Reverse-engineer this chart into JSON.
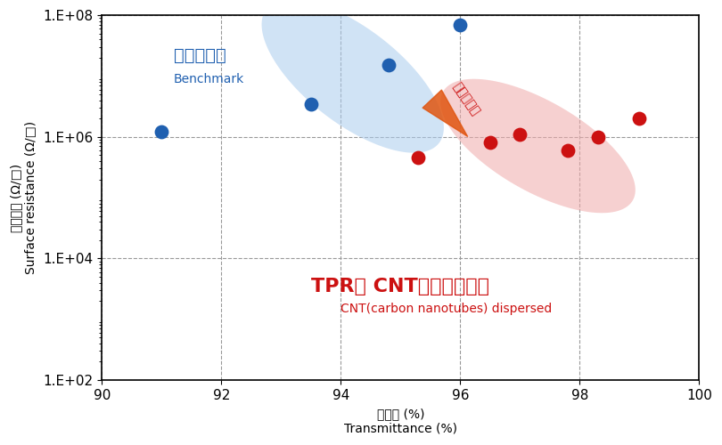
{
  "blue_points_x": [
    91.0,
    93.5,
    94.8,
    96.0
  ],
  "blue_points_y": [
    1200000.0,
    3500000.0,
    15000000.0,
    70000000.0
  ],
  "red_points_x": [
    95.3,
    96.5,
    97.0,
    97.8,
    98.3,
    99.0
  ],
  "red_points_y": [
    450000.0,
    800000.0,
    1100000.0,
    600000.0,
    1000000.0,
    2000000.0
  ],
  "blue_color": "#2060b0",
  "red_color": "#cc1111",
  "blue_ellipse_color": "#aaccee",
  "red_ellipse_color": "#f0aaaa",
  "bg_color": "#ffffff",
  "xlim": [
    90,
    100
  ],
  "ylim_log_min": 2,
  "ylim_log_max": 8,
  "xticks": [
    90,
    92,
    94,
    96,
    98,
    100
  ],
  "ytick_labels": [
    "1.E+02",
    "1.E+04",
    "1.E+06",
    "1.E+08"
  ],
  "ytick_values": [
    100.0,
    10000.0,
    1000000.0,
    100000000.0
  ],
  "ylabel_jp": "表面抗抗 (Ω/□)",
  "ylabel_en": "Surface resistance (Ω/□)",
  "xlabel_jp": "透過率 (%)",
  "xlabel_en": "Transmittance (%)",
  "label_benchmark_jp": "他社比較品",
  "label_benchmark_en": "Benchmark",
  "label_tpr_jp": "TPR製 CNT分散液塗布後",
  "label_tpr_en": "CNT(carbon nanotubes) dispersed",
  "label_arrow": "分散液塗布",
  "grid_color": "#999999",
  "grid_style": "--",
  "point_size": 130
}
